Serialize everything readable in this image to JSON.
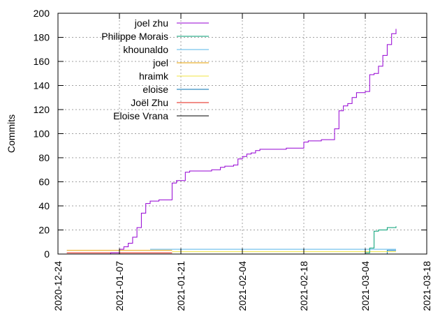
{
  "chart_data": {
    "type": "line",
    "title": "",
    "xlabel": "",
    "ylabel": "Commits",
    "x_type": "date",
    "xlim": [
      "2020-12-24",
      "2021-03-18"
    ],
    "ylim": [
      0,
      200
    ],
    "x_ticks": [
      "2020-12-24",
      "2021-01-07",
      "2021-01-21",
      "2021-02-04",
      "2021-02-18",
      "2021-03-04",
      "2021-03-18"
    ],
    "y_ticks": [
      0,
      20,
      40,
      60,
      80,
      100,
      120,
      140,
      160,
      180,
      200
    ],
    "grid": true,
    "legend_position": "top-left",
    "line_style": "step",
    "series": [
      {
        "name": "joel zhu",
        "color": "#9400d3",
        "points": [
          [
            "2020-12-29",
            0
          ],
          [
            "2021-01-05",
            1
          ],
          [
            "2021-01-07",
            2
          ],
          [
            "2021-01-07",
            4
          ],
          [
            "2021-01-08",
            6
          ],
          [
            "2021-01-09",
            9
          ],
          [
            "2021-01-10",
            14
          ],
          [
            "2021-01-11",
            22
          ],
          [
            "2021-01-12",
            30
          ],
          [
            "2021-01-12",
            34
          ],
          [
            "2021-01-13",
            38
          ],
          [
            "2021-01-13",
            42
          ],
          [
            "2021-01-14",
            44
          ],
          [
            "2021-01-16",
            45
          ],
          [
            "2021-01-19",
            46
          ],
          [
            "2021-01-19",
            59
          ],
          [
            "2021-01-20",
            61
          ],
          [
            "2021-01-22",
            61
          ],
          [
            "2021-01-22",
            68
          ],
          [
            "2021-01-23",
            69
          ],
          [
            "2021-01-28",
            70
          ],
          [
            "2021-01-30",
            72
          ],
          [
            "2021-01-31",
            73
          ],
          [
            "2021-02-02",
            74
          ],
          [
            "2021-02-03",
            79
          ],
          [
            "2021-02-04",
            81
          ],
          [
            "2021-02-05",
            83
          ],
          [
            "2021-02-06",
            84
          ],
          [
            "2021-02-07",
            86
          ],
          [
            "2021-02-08",
            87
          ],
          [
            "2021-02-14",
            88
          ],
          [
            "2021-02-18",
            88
          ],
          [
            "2021-02-18",
            93
          ],
          [
            "2021-02-19",
            94
          ],
          [
            "2021-02-22",
            95
          ],
          [
            "2021-02-25",
            95
          ],
          [
            "2021-02-25",
            104
          ],
          [
            "2021-02-26",
            110
          ],
          [
            "2021-02-26",
            119
          ],
          [
            "2021-02-27",
            123
          ],
          [
            "2021-02-28",
            125
          ],
          [
            "2021-03-01",
            130
          ],
          [
            "2021-03-02",
            134
          ],
          [
            "2021-03-04",
            135
          ],
          [
            "2021-03-05",
            136
          ],
          [
            "2021-03-05",
            149
          ],
          [
            "2021-03-06",
            150
          ],
          [
            "2021-03-07",
            156
          ],
          [
            "2021-03-08",
            158
          ],
          [
            "2021-03-08",
            165
          ],
          [
            "2021-03-09",
            166
          ],
          [
            "2021-03-09",
            174
          ],
          [
            "2021-03-10",
            176
          ],
          [
            "2021-03-10",
            183
          ],
          [
            "2021-03-11",
            186
          ],
          [
            "2021-03-11",
            187
          ]
        ]
      },
      {
        "name": "Philippe Morais",
        "color": "#009e73",
        "points": [
          [
            "2020-12-29",
            0
          ],
          [
            "2021-03-04",
            1
          ],
          [
            "2021-03-05",
            5
          ],
          [
            "2021-03-06",
            12
          ],
          [
            "2021-03-06",
            19
          ],
          [
            "2021-03-07",
            20
          ],
          [
            "2021-03-09",
            21
          ],
          [
            "2021-03-09",
            22
          ],
          [
            "2021-03-11",
            23
          ]
        ]
      },
      {
        "name": "khounaldo",
        "color": "#56b4e9",
        "points": [
          [
            "2021-01-14",
            4
          ],
          [
            "2021-03-11",
            4
          ]
        ]
      },
      {
        "name": "joel",
        "color": "#e69f00",
        "points": [
          [
            "2020-12-26",
            3
          ],
          [
            "2021-01-19",
            3
          ]
        ]
      },
      {
        "name": "hraimk",
        "color": "#f0e442",
        "points": [
          [
            "2021-01-19",
            2
          ],
          [
            "2021-03-11",
            2
          ]
        ]
      },
      {
        "name": "eloise",
        "color": "#0072b2",
        "points": [
          [
            "2021-03-08",
            0
          ],
          [
            "2021-03-09",
            3
          ],
          [
            "2021-03-11",
            3
          ]
        ]
      },
      {
        "name": "Joël Zhu",
        "color": "#e51e10",
        "points": [
          [
            "2020-12-26",
            1
          ],
          [
            "2021-01-19",
            1
          ]
        ]
      },
      {
        "name": "Eloise Vrana",
        "color": "#000000",
        "points": [
          [
            "2020-12-29",
            0
          ],
          [
            "2021-03-11",
            0
          ]
        ]
      }
    ]
  }
}
